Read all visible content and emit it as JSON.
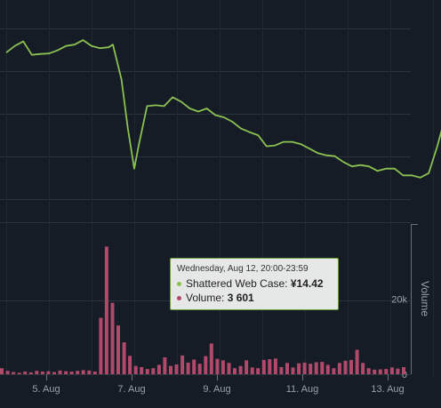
{
  "chart_data": {
    "type": "line",
    "x_axis": {
      "ticks": [
        "5. Aug",
        "7. Aug",
        "9. Aug",
        "11. Aug",
        "13. Aug"
      ]
    },
    "series": [
      {
        "name": "Shattered Web Case",
        "type": "line",
        "color": "#8cc152",
        "points": [
          [
            4.0,
            15.3
          ],
          [
            4.2,
            15.45
          ],
          [
            4.4,
            15.55
          ],
          [
            4.6,
            15.25
          ],
          [
            4.8,
            15.27
          ],
          [
            5.0,
            15.28
          ],
          [
            5.2,
            15.35
          ],
          [
            5.4,
            15.45
          ],
          [
            5.6,
            15.48
          ],
          [
            5.8,
            15.58
          ],
          [
            6.0,
            15.45
          ],
          [
            6.2,
            15.4
          ],
          [
            6.4,
            15.42
          ],
          [
            6.5,
            15.48
          ],
          [
            6.7,
            14.7
          ],
          [
            6.85,
            13.6
          ],
          [
            7.0,
            12.7
          ],
          [
            7.1,
            13.2
          ],
          [
            7.3,
            14.1
          ],
          [
            7.5,
            14.12
          ],
          [
            7.7,
            14.1
          ],
          [
            7.9,
            14.3
          ],
          [
            8.1,
            14.2
          ],
          [
            8.3,
            14.05
          ],
          [
            8.5,
            13.98
          ],
          [
            8.7,
            14.05
          ],
          [
            8.9,
            13.9
          ],
          [
            9.1,
            13.85
          ],
          [
            9.3,
            13.75
          ],
          [
            9.5,
            13.6
          ],
          [
            9.7,
            13.52
          ],
          [
            9.9,
            13.45
          ],
          [
            10.1,
            13.2
          ],
          [
            10.3,
            13.22
          ],
          [
            10.5,
            13.3
          ],
          [
            10.7,
            13.3
          ],
          [
            10.9,
            13.25
          ],
          [
            11.1,
            13.15
          ],
          [
            11.3,
            13.05
          ],
          [
            11.5,
            13.0
          ],
          [
            11.7,
            12.98
          ],
          [
            11.9,
            12.85
          ],
          [
            12.1,
            12.75
          ],
          [
            12.3,
            12.78
          ],
          [
            12.5,
            12.75
          ],
          [
            12.7,
            12.65
          ],
          [
            12.9,
            12.7
          ],
          [
            13.1,
            12.7
          ],
          [
            13.3,
            12.55
          ],
          [
            13.5,
            12.55
          ],
          [
            13.7,
            12.5
          ],
          [
            13.9,
            12.6
          ],
          [
            14.1,
            13.2
          ],
          [
            14.3,
            13.9
          ],
          [
            14.42,
            14.42
          ],
          [
            14.6,
            14.2
          ],
          [
            14.8,
            13.95
          ],
          [
            15.0,
            13.92
          ],
          [
            15.2,
            13.95
          ],
          [
            15.4,
            13.9
          ],
          [
            15.6,
            13.95
          ],
          [
            15.8,
            14.05
          ]
        ]
      },
      {
        "name": "Volume",
        "type": "column",
        "color": "#b0496a",
        "y_axis": {
          "title": "Volume",
          "ticks": [
            "0",
            "20k"
          ],
          "max": 40000
        },
        "values": [
          1600,
          900,
          600,
          400,
          700,
          500,
          900,
          700,
          800,
          600,
          1000,
          800,
          700,
          900,
          1100,
          1000,
          700,
          15000,
          34000,
          19000,
          13000,
          8500,
          4900,
          2200,
          1900,
          1400,
          1600,
          2500,
          4500,
          2200,
          2600,
          5000,
          3100,
          3900,
          2800,
          4800,
          8200,
          4100,
          3700,
          3000,
          1600,
          2200,
          3700,
          1800,
          1600,
          3800,
          4000,
          4200,
          1900,
          3000,
          1800,
          2900,
          3100,
          2800,
          3200,
          3300,
          2500,
          1600,
          3000,
          3600,
          3800,
          6500,
          3000,
          1600,
          1200,
          1300,
          1400,
          1800,
          1500,
          1900
        ]
      }
    ],
    "crosshair_x": 14.42,
    "tooltip": {
      "date": "Wednesday, Aug 12, 20:00-23:59",
      "price_label": "Shattered Web Case: ",
      "price_value": "¥14.42",
      "volume_label": "Volume: ",
      "volume_value": "3 601"
    }
  }
}
